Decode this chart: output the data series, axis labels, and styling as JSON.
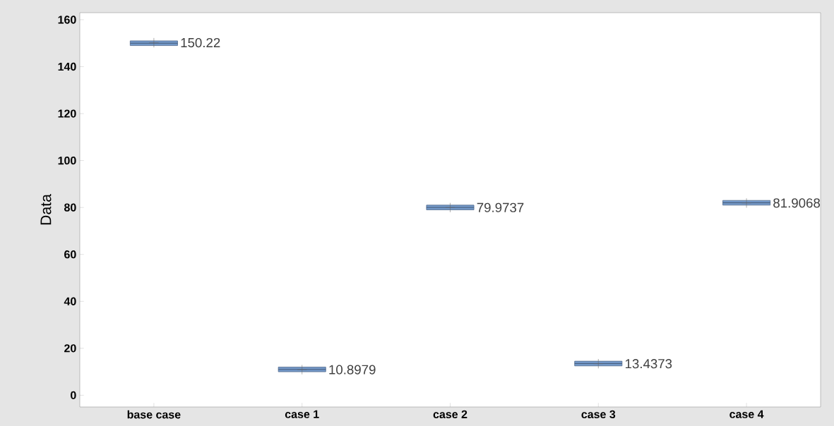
{
  "chart_data": {
    "type": "box",
    "ylabel": "Data",
    "categories": [
      "base case",
      "case 1",
      "case 2",
      "case 3",
      "case 4"
    ],
    "boxes": [
      {
        "low": 149,
        "q1": 149,
        "median": 150,
        "q3": 151,
        "high": 151,
        "mean": 150.22
      },
      {
        "low": 10,
        "q1": 10,
        "median": 11,
        "q3": 12,
        "high": 12,
        "mean": 10.8979
      },
      {
        "low": 79,
        "q1": 79,
        "median": 80,
        "q3": 81,
        "high": 81,
        "mean": 79.9737
      },
      {
        "low": 12.5,
        "q1": 12.5,
        "median": 13.5,
        "q3": 14.5,
        "high": 14.5,
        "mean": 13.4373
      },
      {
        "low": 81,
        "q1": 81,
        "median": 82,
        "q3": 83,
        "high": 83,
        "mean": 81.9068
      }
    ],
    "color": "#7398c8",
    "ylim": [
      -5,
      163
    ],
    "yticks": [
      0,
      20,
      40,
      60,
      80,
      100,
      120,
      140,
      160
    ],
    "annotations": [
      {
        "text": "150.22",
        "x": "base case",
        "y": 150.22
      },
      {
        "text": "10.8979",
        "x": "case 1",
        "y": 10.8979
      },
      {
        "text": "79.9737",
        "x": "case 2",
        "y": 79.9737
      },
      {
        "text": "13.4373",
        "x": "case 3",
        "y": 13.4373
      },
      {
        "text": "81.9068",
        "x": "case 4",
        "y": 81.9068
      }
    ],
    "grid": false
  }
}
